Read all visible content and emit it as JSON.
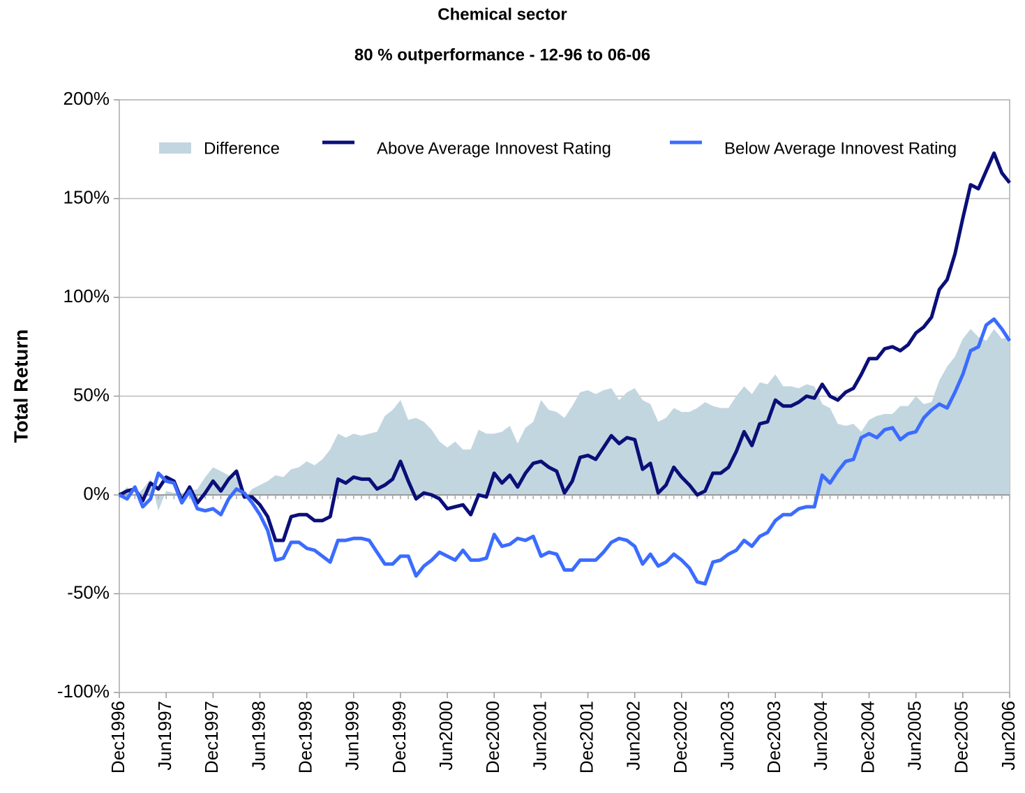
{
  "chart_data": {
    "type": "line",
    "title": "Chemical sector",
    "subtitle": "80 % outperformance - 12-96 to 06-06",
    "y_label": "Total Return",
    "categories": [
      "Dec1996",
      null,
      null,
      null,
      null,
      null,
      "Jun1997",
      null,
      null,
      null,
      null,
      null,
      "Dec1997",
      null,
      null,
      null,
      null,
      null,
      "Jun1998",
      null,
      null,
      null,
      null,
      null,
      "Dec1998",
      null,
      null,
      null,
      null,
      null,
      "Jun1999",
      null,
      null,
      null,
      null,
      null,
      "Dec1999",
      null,
      null,
      null,
      null,
      null,
      "Jun2000",
      null,
      null,
      null,
      null,
      null,
      "Dec2000",
      null,
      null,
      null,
      null,
      null,
      "Jun2001",
      null,
      null,
      null,
      null,
      null,
      "Dec2001",
      null,
      null,
      null,
      null,
      null,
      "Jun2002",
      null,
      null,
      null,
      null,
      null,
      "Dec2002",
      null,
      null,
      null,
      null,
      null,
      "Jun2003",
      null,
      null,
      null,
      null,
      null,
      "Dec2003",
      null,
      null,
      null,
      null,
      null,
      "Jun2004",
      null,
      null,
      null,
      null,
      null,
      "Dec2004",
      null,
      null,
      null,
      null,
      null,
      "Jun2005",
      null,
      null,
      null,
      null,
      null,
      "Dec2005",
      null,
      null,
      null,
      null,
      null,
      "Jun2006"
    ],
    "series": [
      {
        "name": "Difference",
        "kind": "area",
        "color": "#c2d6e0",
        "values": [
          0,
          4,
          -1,
          3,
          8,
          -8,
          2,
          1,
          1,
          2,
          3,
          9,
          14,
          12,
          10,
          9,
          -2,
          3,
          5,
          7,
          10,
          9,
          13,
          14,
          17,
          15,
          18,
          23,
          31,
          29,
          31,
          30,
          31,
          32,
          40,
          43,
          48,
          38,
          39,
          37,
          33,
          27,
          24,
          27,
          23,
          23,
          33,
          31,
          31,
          32,
          35,
          26,
          34,
          37,
          48,
          43,
          42,
          39,
          45,
          52,
          53,
          51,
          53,
          54,
          48,
          52,
          54,
          48,
          46,
          37,
          39,
          44,
          42,
          42,
          44,
          47,
          45,
          44,
          44,
          50,
          55,
          51,
          57,
          56,
          61,
          55,
          55,
          54,
          56,
          55,
          46,
          44,
          36,
          35,
          36,
          32,
          38,
          40,
          41,
          41,
          45,
          45,
          50,
          46,
          47,
          58,
          65,
          70,
          79,
          84,
          80,
          78,
          84,
          79,
          80
        ]
      },
      {
        "name": "Above Average Innovest Rating",
        "kind": "line",
        "color": "#0a0f78",
        "values": [
          0,
          2,
          3,
          -3,
          6,
          3,
          9,
          7,
          -3,
          4,
          -4,
          1,
          7,
          2,
          8,
          12,
          -1,
          -1,
          -5,
          -11,
          -23,
          -23,
          -11,
          -10,
          -10,
          -13,
          -13,
          -11,
          8,
          6,
          9,
          8,
          8,
          3,
          5,
          8,
          17,
          7,
          -2,
          1,
          0,
          -2,
          -7,
          -6,
          -5,
          -10,
          0,
          -1,
          11,
          6,
          10,
          4,
          11,
          16,
          17,
          14,
          12,
          1,
          7,
          19,
          20,
          18,
          24,
          30,
          26,
          29,
          28,
          13,
          16,
          1,
          5,
          14,
          9,
          5,
          0,
          2,
          11,
          11,
          14,
          22,
          32,
          25,
          36,
          37,
          48,
          45,
          45,
          47,
          50,
          49,
          56,
          50,
          48,
          52,
          54,
          61,
          69,
          69,
          74,
          75,
          73,
          76,
          82,
          85,
          90,
          104,
          109,
          122,
          140,
          157,
          155,
          164,
          173,
          163,
          158
        ]
      },
      {
        "name": "Below Average Innovest Rating",
        "kind": "line",
        "color": "#3b6cff",
        "values": [
          0,
          -2,
          4,
          -6,
          -2,
          11,
          7,
          6,
          -4,
          2,
          -7,
          -8,
          -7,
          -10,
          -2,
          3,
          1,
          -4,
          -10,
          -18,
          -33,
          -32,
          -24,
          -24,
          -27,
          -28,
          -31,
          -34,
          -23,
          -23,
          -22,
          -22,
          -23,
          -29,
          -35,
          -35,
          -31,
          -31,
          -41,
          -36,
          -33,
          -29,
          -31,
          -33,
          -28,
          -33,
          -33,
          -32,
          -20,
          -26,
          -25,
          -22,
          -23,
          -21,
          -31,
          -29,
          -30,
          -38,
          -38,
          -33,
          -33,
          -33,
          -29,
          -24,
          -22,
          -23,
          -26,
          -35,
          -30,
          -36,
          -34,
          -30,
          -33,
          -37,
          -44,
          -45,
          -34,
          -33,
          -30,
          -28,
          -23,
          -26,
          -21,
          -19,
          -13,
          -10,
          -10,
          -7,
          -6,
          -6,
          10,
          6,
          12,
          17,
          18,
          29,
          31,
          29,
          33,
          34,
          28,
          31,
          32,
          39,
          43,
          46,
          44,
          52,
          61,
          73,
          75,
          86,
          89,
          84,
          78
        ]
      }
    ],
    "ylim": [
      -100,
      200
    ],
    "yticks": [
      {
        "value": -100,
        "label": "-100%"
      },
      {
        "value": -50,
        "label": "-50%"
      },
      {
        "value": 0,
        "label": "0%"
      },
      {
        "value": 50,
        "label": "50%"
      },
      {
        "value": 100,
        "label": "100%"
      },
      {
        "value": 150,
        "label": "150%"
      },
      {
        "value": 200,
        "label": "200%"
      }
    ],
    "grid": true,
    "legend": "top"
  }
}
